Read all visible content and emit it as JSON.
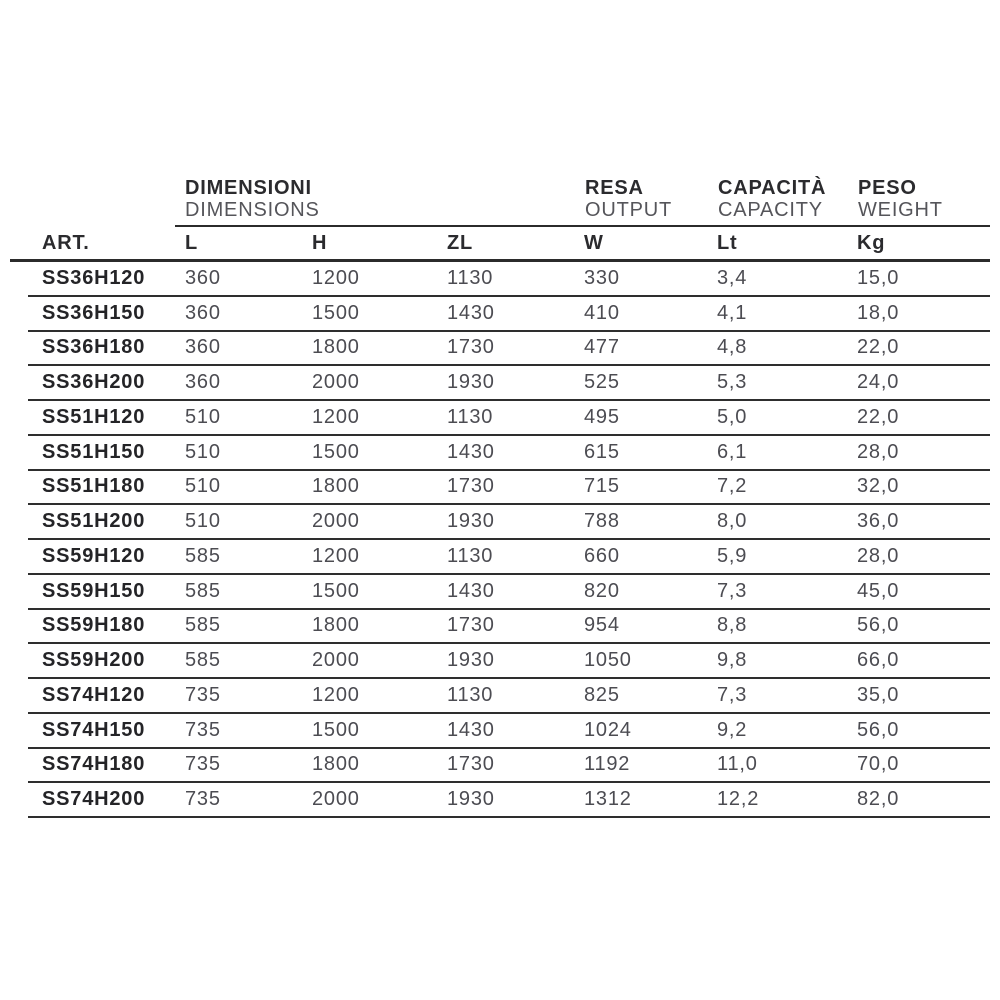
{
  "page": {
    "background": "#ffffff"
  },
  "chart_data": {
    "type": "table",
    "title": "",
    "group_headers": [
      {
        "title": "DIMENSIONI",
        "subtitle": "DIMENSIONS",
        "spans_columns": [
          "L",
          "H",
          "ZL"
        ]
      },
      {
        "title": "RESA",
        "subtitle": "OUTPUT",
        "spans_columns": [
          "W"
        ]
      },
      {
        "title": "CAPACITÀ",
        "subtitle": "CAPACITY",
        "spans_columns": [
          "Lt"
        ]
      },
      {
        "title": "PESO",
        "subtitle": "WEIGHT",
        "spans_columns": [
          "Kg"
        ]
      }
    ],
    "columns": [
      "ART.",
      "L",
      "H",
      "ZL",
      "W",
      "Lt",
      "Kg"
    ],
    "rows": [
      [
        "SS36H120",
        "360",
        "1200",
        "1130",
        "330",
        "3,4",
        "15,0"
      ],
      [
        "SS36H150",
        "360",
        "1500",
        "1430",
        "410",
        "4,1",
        "18,0"
      ],
      [
        "SS36H180",
        "360",
        "1800",
        "1730",
        "477",
        "4,8",
        "22,0"
      ],
      [
        "SS36H200",
        "360",
        "2000",
        "1930",
        "525",
        "5,3",
        "24,0"
      ],
      [
        "SS51H120",
        "510",
        "1200",
        "1130",
        "495",
        "5,0",
        "22,0"
      ],
      [
        "SS51H150",
        "510",
        "1500",
        "1430",
        "615",
        "6,1",
        "28,0"
      ],
      [
        "SS51H180",
        "510",
        "1800",
        "1730",
        "715",
        "7,2",
        "32,0"
      ],
      [
        "SS51H200",
        "510",
        "2000",
        "1930",
        "788",
        "8,0",
        "36,0"
      ],
      [
        "SS59H120",
        "585",
        "1200",
        "1130",
        "660",
        "5,9",
        "28,0"
      ],
      [
        "SS59H150",
        "585",
        "1500",
        "1430",
        "820",
        "7,3",
        "45,0"
      ],
      [
        "SS59H180",
        "585",
        "1800",
        "1730",
        "954",
        "8,8",
        "56,0"
      ],
      [
        "SS59H200",
        "585",
        "2000",
        "1930",
        "1050",
        "9,8",
        "66,0"
      ],
      [
        "SS74H120",
        "735",
        "1200",
        "1130",
        "825",
        "7,3",
        "35,0"
      ],
      [
        "SS74H150",
        "735",
        "1500",
        "1430",
        "1024",
        "9,2",
        "56,0"
      ],
      [
        "SS74H180",
        "735",
        "1800",
        "1730",
        "1192",
        "11,0",
        "70,0"
      ],
      [
        "SS74H200",
        "735",
        "2000",
        "1930",
        "1312",
        "12,2",
        "82,0"
      ]
    ],
    "colors": {
      "text_dark": "#2b2b2e",
      "text_light": "#4c4c52",
      "line": "#2b2b2b",
      "background": "#ffffff"
    }
  }
}
